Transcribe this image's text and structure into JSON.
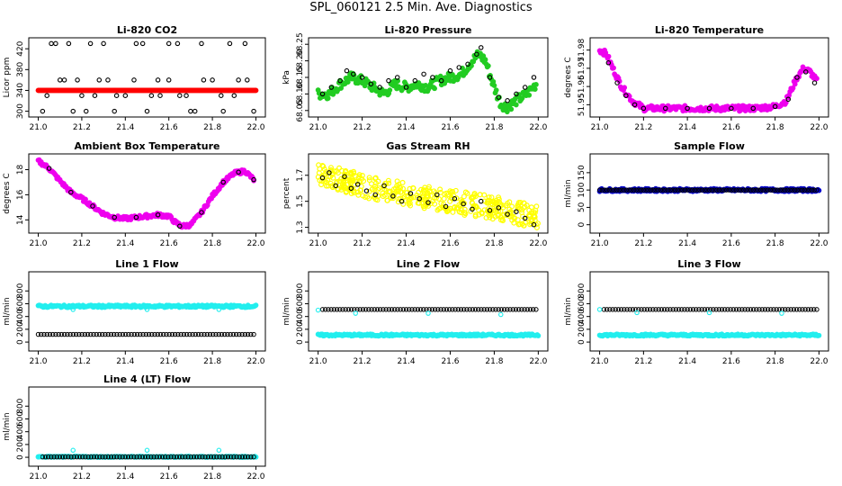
{
  "main_title": "SPL_060121  2.5 Min. Ave. Diagnostics",
  "chart_data": [
    {
      "id": "co2",
      "type": "scatter",
      "title": "Li-820 CO2",
      "ylabel": "Licor ppm",
      "xlim": [
        21.0,
        22.0
      ],
      "ylim": [
        295,
        435
      ],
      "xticks": [
        "21.0",
        "21.2",
        "21.4",
        "21.6",
        "21.8",
        "22.0"
      ],
      "yticks": [
        {
          "v": 300,
          "label": "300"
        },
        {
          "v": 340,
          "label": "340"
        },
        {
          "v": 380,
          "label": "380"
        },
        {
          "v": 420,
          "label": "420"
        }
      ],
      "series": [
        {
          "name": "CO2 fine",
          "color": "#ff0000",
          "kind": "band",
          "x0": 21.0,
          "x1": 22.0,
          "values": [
            340,
            340
          ]
        },
        {
          "name": "CO2 coarse",
          "color": "#000000",
          "x": [
            21.02,
            21.06,
            21.1,
            21.14,
            21.18,
            21.22,
            21.26,
            21.3,
            21.35,
            21.4,
            21.45,
            21.5,
            21.55,
            21.6,
            21.65,
            21.7,
            21.75,
            21.8,
            21.85,
            21.9,
            21.95,
            21.99,
            21.04,
            21.12,
            21.2,
            21.28,
            21.36,
            21.44,
            21.52,
            21.6,
            21.68,
            21.76,
            21.84,
            21.92,
            21.08,
            21.16,
            21.24,
            21.32,
            21.48,
            21.56,
            21.64,
            21.72,
            21.88,
            21.96
          ],
          "values": [
            300,
            430,
            360,
            430,
            360,
            300,
            330,
            430,
            300,
            330,
            430,
            300,
            360,
            430,
            330,
            300,
            430,
            360,
            300,
            330,
            430,
            300,
            330,
            360,
            330,
            360,
            330,
            360,
            330,
            360,
            330,
            360,
            330,
            360,
            430,
            300,
            430,
            360,
            430,
            330,
            430,
            300,
            430,
            360
          ]
        }
      ]
    },
    {
      "id": "pressure",
      "type": "scatter",
      "title": "Li-820 Pressure",
      "ylabel": "kPa",
      "xlim": [
        21.0,
        22.0
      ],
      "ylim": [
        68.04,
        68.26
      ],
      "xticks": [
        "21.0",
        "21.2",
        "21.4",
        "21.6",
        "21.8",
        "22.0"
      ],
      "yticks": [
        {
          "v": 68.05,
          "label": "68.05"
        },
        {
          "v": 68.1,
          "label": "68.10"
        },
        {
          "v": 68.15,
          "label": "68.15"
        },
        {
          "v": 68.2,
          "label": "68.20"
        },
        {
          "v": 68.25,
          "label": "68.25"
        }
      ],
      "series": [
        {
          "name": "P fine",
          "color": "#22cc22",
          "kind": "band",
          "x": [
            21.0,
            21.05,
            21.1,
            21.15,
            21.2,
            21.25,
            21.3,
            21.35,
            21.4,
            21.45,
            21.5,
            21.55,
            21.6,
            21.65,
            21.7,
            21.73,
            21.76,
            21.8,
            21.83,
            21.86,
            21.9,
            21.95,
            21.99
          ],
          "values": [
            68.1,
            68.1,
            68.13,
            68.15,
            68.14,
            68.12,
            68.1,
            68.13,
            68.12,
            68.13,
            68.12,
            68.14,
            68.15,
            68.16,
            68.2,
            68.22,
            68.2,
            68.12,
            68.07,
            68.06,
            68.08,
            68.1,
            68.13
          ],
          "spread": 0.015
        },
        {
          "name": "P coarse",
          "color": "#000000",
          "x": [
            21.02,
            21.06,
            21.1,
            21.13,
            21.16,
            21.2,
            21.24,
            21.28,
            21.32,
            21.36,
            21.4,
            21.44,
            21.48,
            21.52,
            21.56,
            21.6,
            21.64,
            21.68,
            21.72,
            21.74,
            21.78,
            21.82,
            21.86,
            21.9,
            21.94,
            21.98
          ],
          "values": [
            68.1,
            68.12,
            68.14,
            68.17,
            68.16,
            68.15,
            68.13,
            68.12,
            68.14,
            68.15,
            68.12,
            68.14,
            68.16,
            68.15,
            68.14,
            68.17,
            68.18,
            68.19,
            68.22,
            68.24,
            68.15,
            68.09,
            68.08,
            68.1,
            68.12,
            68.15
          ]
        }
      ]
    },
    {
      "id": "licor-temp",
      "type": "scatter",
      "title": "Li-820 Temperature",
      "ylabel": "degrees C",
      "xlim": [
        21.0,
        22.0
      ],
      "ylim": [
        51.945,
        51.985
      ],
      "xticks": [
        "21.0",
        "21.2",
        "21.4",
        "21.6",
        "21.8",
        "22.0"
      ],
      "yticks": [
        {
          "v": 51.95,
          "label": "51.95"
        },
        {
          "v": 51.96,
          "label": "51.96"
        },
        {
          "v": 51.97,
          "label": "51.97"
        },
        {
          "v": 51.98,
          "label": "51.98"
        }
      ],
      "series": [
        {
          "name": "T fine",
          "color": "#ee00ee",
          "kind": "band",
          "x": [
            21.0,
            21.03,
            21.06,
            21.1,
            21.15,
            21.2,
            21.3,
            21.5,
            21.7,
            21.8,
            21.85,
            21.9,
            21.93,
            21.96,
            21.99
          ],
          "values": [
            51.98,
            51.978,
            51.97,
            51.96,
            51.952,
            51.948,
            51.948,
            51.948,
            51.948,
            51.949,
            51.952,
            51.965,
            51.97,
            51.968,
            51.963
          ],
          "spread": 0.0015
        },
        {
          "name": "T coarse",
          "color": "#000000",
          "x": [
            21.04,
            21.08,
            21.12,
            21.16,
            21.2,
            21.3,
            21.4,
            21.5,
            21.6,
            21.7,
            21.8,
            21.86,
            21.9,
            21.94,
            21.98
          ],
          "values": [
            51.973,
            51.962,
            51.955,
            51.95,
            51.948,
            51.948,
            51.948,
            51.948,
            51.948,
            51.948,
            51.949,
            51.953,
            51.965,
            51.968,
            51.962
          ]
        }
      ]
    },
    {
      "id": "box-temp",
      "type": "scatter",
      "title": "Ambient Box Temperature",
      "ylabel": "degrees C",
      "xlim": [
        21.0,
        22.0
      ],
      "ylim": [
        13.2,
        19.0
      ],
      "xticks": [
        "21.0",
        "21.2",
        "21.4",
        "21.6",
        "21.8",
        "22.0"
      ],
      "yticks": [
        {
          "v": 14,
          "label": "14"
        },
        {
          "v": 16,
          "label": "16"
        },
        {
          "v": 18,
          "label": "18"
        }
      ],
      "series": [
        {
          "name": "Box fine",
          "color": "#ee00ee",
          "kind": "band",
          "x": [
            21.0,
            21.05,
            21.1,
            21.15,
            21.2,
            21.25,
            21.3,
            21.35,
            21.4,
            21.45,
            21.5,
            21.55,
            21.6,
            21.63,
            21.66,
            21.7,
            21.75,
            21.8,
            21.85,
            21.9,
            21.95,
            21.99
          ],
          "values": [
            18.7,
            18.1,
            17.1,
            16.2,
            15.7,
            15.1,
            14.5,
            14.2,
            14.1,
            14.2,
            14.3,
            14.4,
            14.3,
            13.8,
            13.5,
            13.6,
            14.6,
            15.9,
            17.0,
            17.7,
            17.9,
            17.2
          ],
          "spread": 0.15
        },
        {
          "name": "Box coarse",
          "color": "#000000",
          "x": [
            21.05,
            21.15,
            21.25,
            21.35,
            21.45,
            21.55,
            21.65,
            21.75,
            21.85,
            21.92,
            21.99
          ],
          "values": [
            18.1,
            16.2,
            15.1,
            14.2,
            14.2,
            14.4,
            13.5,
            14.6,
            17.0,
            17.8,
            17.2
          ]
        }
      ]
    },
    {
      "id": "rh",
      "type": "scatter",
      "title": "Gas Stream RH",
      "ylabel": "percent",
      "xlim": [
        21.0,
        22.0
      ],
      "ylim": [
        1.28,
        1.84
      ],
      "xticks": [
        "21.0",
        "21.2",
        "21.4",
        "21.6",
        "21.8",
        "22.0"
      ],
      "yticks": [
        {
          "v": 1.3,
          "label": "1.3"
        },
        {
          "v": 1.5,
          "label": "1.5"
        },
        {
          "v": 1.7,
          "label": "1.7"
        }
      ],
      "series": [
        {
          "name": "RH fine",
          "color": "#ffff00",
          "kind": "cloud",
          "x": [
            21.0,
            21.2,
            21.4,
            21.6,
            21.8,
            22.0
          ],
          "values": [
            1.72,
            1.62,
            1.56,
            1.5,
            1.45,
            1.38
          ],
          "spread": 0.09
        },
        {
          "name": "RH coarse",
          "color": "#000000",
          "x": [
            21.02,
            21.05,
            21.08,
            21.12,
            21.15,
            21.18,
            21.22,
            21.26,
            21.3,
            21.34,
            21.38,
            21.42,
            21.46,
            21.5,
            21.54,
            21.58,
            21.62,
            21.66,
            21.7,
            21.74,
            21.78,
            21.82,
            21.86,
            21.9,
            21.94,
            21.98
          ],
          "values": [
            1.68,
            1.72,
            1.62,
            1.69,
            1.6,
            1.63,
            1.58,
            1.55,
            1.62,
            1.54,
            1.5,
            1.56,
            1.52,
            1.49,
            1.55,
            1.46,
            1.52,
            1.48,
            1.44,
            1.5,
            1.43,
            1.45,
            1.4,
            1.42,
            1.37,
            1.32
          ]
        }
      ]
    },
    {
      "id": "sample-flow",
      "type": "scatter",
      "title": "Sample Flow",
      "ylabel": "ml/min",
      "xlim": [
        21.0,
        22.0
      ],
      "ylim": [
        -15,
        195
      ],
      "xticks": [
        "21.0",
        "21.2",
        "21.4",
        "21.6",
        "21.8",
        "22.0"
      ],
      "yticks": [
        {
          "v": 0,
          "label": "0"
        },
        {
          "v": 50,
          "label": "50"
        },
        {
          "v": 100,
          "label": "100"
        },
        {
          "v": 150,
          "label": "150"
        }
      ],
      "series": [
        {
          "name": "Flow fine",
          "color": "#0000cc",
          "kind": "band",
          "x": [
            21.0,
            22.0
          ],
          "values": [
            100,
            100
          ],
          "spread": 4
        },
        {
          "name": "Flow coarse",
          "color": "#000000",
          "kind": "dense",
          "x0": 21.0,
          "x1": 21.99,
          "n": 90,
          "values": [
            100
          ]
        }
      ]
    },
    {
      "id": "line1",
      "type": "scatter",
      "title": "Line 1 Flow",
      "ylabel": "ml/min",
      "xlim": [
        21.0,
        22.0
      ],
      "ylim": [
        -90,
        1050
      ],
      "xticks": [
        "21.0",
        "21.2",
        "21.4",
        "21.6",
        "21.8",
        "22.0"
      ],
      "yticks": [
        {
          "v": 0,
          "label": "0"
        },
        {
          "v": 200,
          "label": "200"
        },
        {
          "v": 400,
          "label": "400"
        },
        {
          "v": 600,
          "label": "600"
        },
        {
          "v": 800,
          "label": "800"
        }
      ],
      "series": [
        {
          "name": "L1 upper",
          "color": "#22eeee",
          "kind": "band",
          "x": [
            21.0,
            22.0
          ],
          "values": [
            560,
            560
          ],
          "spread": 18
        },
        {
          "name": "L1 lower",
          "color": "#000000",
          "kind": "dense",
          "x0": 21.0,
          "x1": 21.99,
          "n": 75,
          "values": [
            120
          ]
        },
        {
          "name": "L1 dips",
          "color": "#22eeee",
          "x": [
            21.16,
            21.5,
            21.83
          ],
          "values": [
            510,
            510,
            510
          ]
        }
      ]
    },
    {
      "id": "line2",
      "type": "scatter",
      "title": "Line 2 Flow",
      "ylabel": "ml/min",
      "xlim": [
        21.0,
        22.0
      ],
      "ylim": [
        -90,
        1050
      ],
      "xticks": [
        "21.0",
        "21.2",
        "21.4",
        "21.6",
        "21.8",
        "22.0"
      ],
      "yticks": [
        {
          "v": 0,
          "label": "0"
        },
        {
          "v": 200,
          "label": "200"
        },
        {
          "v": 400,
          "label": "400"
        },
        {
          "v": 600,
          "label": "600"
        },
        {
          "v": 800,
          "label": "800"
        }
      ],
      "series": [
        {
          "name": "L2 lower",
          "color": "#22eeee",
          "kind": "band",
          "x": [
            21.0,
            22.0
          ],
          "values": [
            110,
            110
          ],
          "spread": 15
        },
        {
          "name": "L2 upper",
          "color": "#000000",
          "kind": "dense",
          "x0": 21.02,
          "x1": 21.99,
          "n": 75,
          "values": [
            510
          ]
        },
        {
          "name": "L2 dips",
          "color": "#22eeee",
          "x": [
            21.0,
            21.17,
            21.5,
            21.83
          ],
          "values": [
            500,
            450,
            450,
            430
          ]
        }
      ]
    },
    {
      "id": "line3",
      "type": "scatter",
      "title": "Line 3 Flow",
      "ylabel": "ml/min",
      "xlim": [
        21.0,
        22.0
      ],
      "ylim": [
        -90,
        1050
      ],
      "xticks": [
        "21.0",
        "21.2",
        "21.4",
        "21.6",
        "21.8",
        "22.0"
      ],
      "yticks": [
        {
          "v": 0,
          "label": "0"
        },
        {
          "v": 200,
          "label": "200"
        },
        {
          "v": 400,
          "label": "400"
        },
        {
          "v": 600,
          "label": "600"
        },
        {
          "v": 800,
          "label": "800"
        }
      ],
      "series": [
        {
          "name": "L3 lower",
          "color": "#22eeee",
          "kind": "band",
          "x": [
            21.0,
            22.0
          ],
          "values": [
            110,
            110
          ],
          "spread": 15
        },
        {
          "name": "L3 upper",
          "color": "#000000",
          "kind": "dense",
          "x0": 21.02,
          "x1": 21.99,
          "n": 75,
          "values": [
            510
          ]
        },
        {
          "name": "L3 dips",
          "color": "#22eeee",
          "x": [
            21.0,
            21.17,
            21.5,
            21.83
          ],
          "values": [
            510,
            460,
            460,
            450
          ]
        }
      ]
    },
    {
      "id": "line4",
      "type": "scatter",
      "title": "Line 4 (LT) Flow",
      "ylabel": "ml/min",
      "xlim": [
        21.0,
        22.0
      ],
      "ylim": [
        -90,
        1050
      ],
      "xticks": [
        "21.0",
        "21.2",
        "21.4",
        "21.6",
        "21.8",
        "22.0"
      ],
      "yticks": [
        {
          "v": 0,
          "label": "0"
        },
        {
          "v": 200,
          "label": "200"
        },
        {
          "v": 400,
          "label": "400"
        },
        {
          "v": 600,
          "label": "600"
        },
        {
          "v": 800,
          "label": "800"
        }
      ],
      "series": [
        {
          "name": "L4 base",
          "color": "#22eeee",
          "kind": "band",
          "x": [
            21.0,
            22.0
          ],
          "values": [
            8,
            8
          ],
          "spread": 8
        },
        {
          "name": "L4 coarse",
          "color": "#000000",
          "kind": "dense",
          "x0": 21.02,
          "x1": 21.99,
          "n": 75,
          "values": [
            5
          ]
        },
        {
          "name": "L4 spikes",
          "color": "#22eeee",
          "x": [
            21.0,
            21.16,
            21.5,
            21.83
          ],
          "values": [
            10,
            110,
            110,
            110
          ]
        }
      ]
    }
  ]
}
